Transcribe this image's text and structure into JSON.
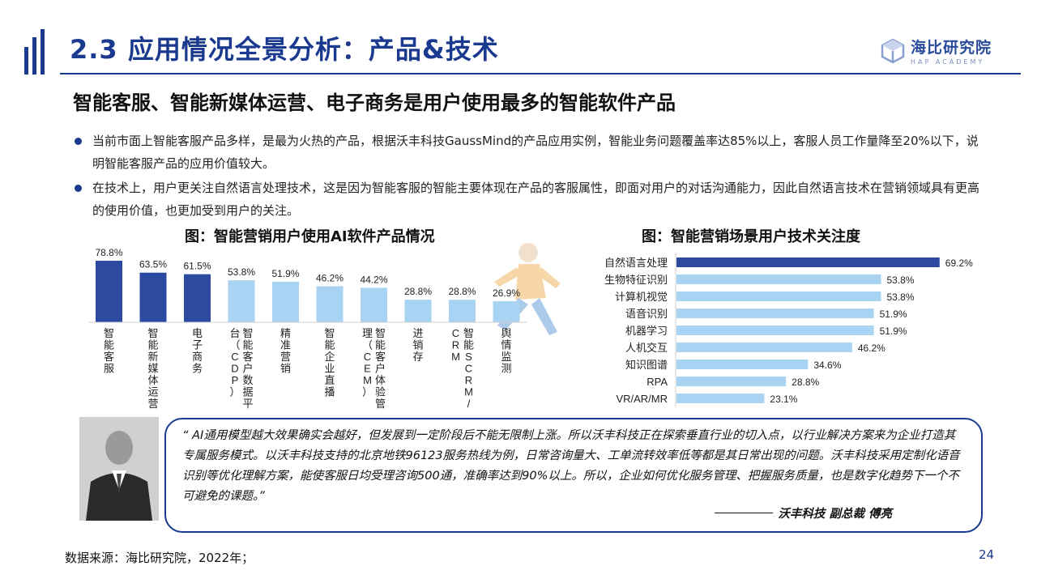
{
  "header": {
    "title": "2.3 应用情况全景分析：产品&技术",
    "logo_cn": "海比研究院",
    "logo_en": "HAP ACADEMY"
  },
  "subtitle": "智能客服、智能新媒体运营、电子商务是用户使用最多的智能软件产品",
  "bullets": [
    "当前市面上智能客服产品多样，是最为火热的产品，根据沃丰科技GaussMind的产品应用实例，智能业务问题覆盖率达85%以上，客服人员工作量降至20%以下，说明智能客服产品的应用价值较大。",
    "在技术上，用户更关注自然语言处理技术，这是因为智能客服的智能主要体现在产品的客服属性，即面对用户的对话沟通能力，因此自然语言技术在营销领域具有更高的使用价值，也更加受到用户的关注。"
  ],
  "chart_data": [
    {
      "type": "bar",
      "title": "图：智能营销用户使用AI软件产品情况",
      "categories": [
        "智能客服",
        "智能新媒体运营",
        "电子商务",
        "智能客户数据平台（CDP）",
        "精准营销",
        "智能企业直播",
        "智能客户体验管理（CEM）",
        "进销存",
        "智能SCRM/CRM",
        "舆情监测"
      ],
      "values": [
        78.8,
        63.5,
        61.5,
        53.8,
        51.9,
        46.2,
        44.2,
        28.8,
        28.8,
        26.9
      ],
      "value_labels": [
        "78.8%",
        "63.5%",
        "61.5%",
        "53.8%",
        "51.9%",
        "46.2%",
        "44.2%",
        "28.8%",
        "28.8%",
        "26.9%"
      ],
      "highlight_count": 3,
      "colors": {
        "highlight": "#2b4aa0",
        "normal": "#a8d3f2"
      },
      "ylim": [
        0,
        85
      ]
    },
    {
      "type": "bar",
      "orientation": "horizontal",
      "title": "图：智能营销场景用户技术关注度",
      "categories": [
        "自然语言处理",
        "生物特征识别",
        "计算机视觉",
        "语音识别",
        "机器学习",
        "人机交互",
        "知识图谱",
        "RPA",
        "VR/AR/MR"
      ],
      "values": [
        69.2,
        53.8,
        53.8,
        51.9,
        51.9,
        46.2,
        34.6,
        28.8,
        23.1
      ],
      "value_labels": [
        "69.2%",
        "53.8%",
        "53.8%",
        "51.9%",
        "51.9%",
        "46.2%",
        "34.6%",
        "28.8%",
        "23.1%"
      ],
      "highlight_count": 1,
      "colors": {
        "highlight": "#2b4aa0",
        "normal": "#a8d3f2"
      },
      "xlim": [
        0,
        75
      ]
    }
  ],
  "quote": {
    "text": "“ AI通用模型越大效果确实会越好，但发展到一定阶段后不能无限制上涨。所以沃丰科技正在探索垂直行业的切入点，以行业解决方案来为企业打造其专属服务模式。以沃丰科技支持的北京地铁96123服务热线为例，日常咨询量大、工单流转效率低等都是其日常出现的问题。沃丰科技采用定制化语音识别等优化理解方案，能使客服日均受理咨询500通，准确率达到90%以上。所以，企业如何优化服务管理、把握服务质量，也是数字化趋势下一个不可避免的课题。”",
    "signature": "沃丰科技   副总裁  傅亮"
  },
  "footer": {
    "source": "数据来源：海比研究院，2022年；",
    "page": "24"
  }
}
